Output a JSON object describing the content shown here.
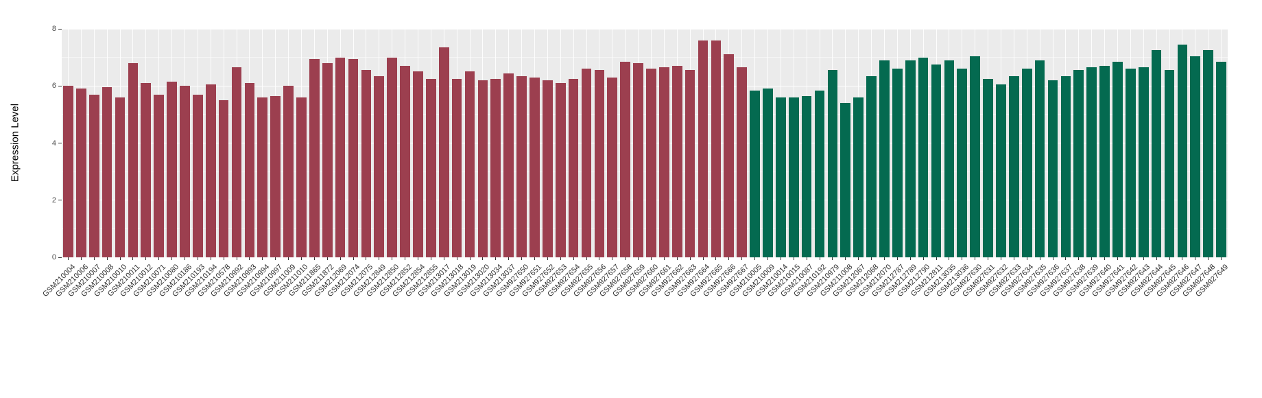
{
  "figure": {
    "background": "#ffffff",
    "panel_background": "#ebebeb",
    "grid_color": "#ffffff"
  },
  "chart_data": {
    "type": "bar",
    "title": "",
    "xlabel": "",
    "ylabel": "Expression Level",
    "ylim": [
      0,
      8
    ],
    "yticks": [
      0,
      2,
      4,
      6,
      8
    ],
    "grid": "white major and minor horizontal gridlines plus vertical category gridlines on gray panel",
    "legend_position": "none",
    "bar_groups": [
      {
        "name": "left-group",
        "color": "#9c3f4f",
        "labels": [
          "GSM210004",
          "GSM210006",
          "GSM210007",
          "GSM210008",
          "GSM210010",
          "GSM210011",
          "GSM210012",
          "GSM210071",
          "GSM210080",
          "GSM210186",
          "GSM210193",
          "GSM210194",
          "GSM210578",
          "GSM210992",
          "GSM210993",
          "GSM210994",
          "GSM210997",
          "GSM211009",
          "GSM211010",
          "GSM211865",
          "GSM211872",
          "GSM212069",
          "GSM212074",
          "GSM212075",
          "GSM212849",
          "GSM212850",
          "GSM212852",
          "GSM212854",
          "GSM212855",
          "GSM213017",
          "GSM213018",
          "GSM213019",
          "GSM213020",
          "GSM213034",
          "GSM213037",
          "GSM927650",
          "GSM927651",
          "GSM927652",
          "GSM927653",
          "GSM927654",
          "GSM927655",
          "GSM927656",
          "GSM927657",
          "GSM927658",
          "GSM927659",
          "GSM927660",
          "GSM927661",
          "GSM927662",
          "GSM927663",
          "GSM927664",
          "GSM927665",
          "GSM927666",
          "GSM927667"
        ],
        "values": [
          6.0,
          5.9,
          5.7,
          5.95,
          5.6,
          6.8,
          6.1,
          5.7,
          6.15,
          6.0,
          5.7,
          6.05,
          5.5,
          6.65,
          6.1,
          5.6,
          5.65,
          6.0,
          5.6,
          6.95,
          6.8,
          7.0,
          6.95,
          6.55,
          6.35,
          7.0,
          6.7,
          6.5,
          6.25,
          7.35,
          6.25,
          6.5,
          6.2,
          6.25,
          6.45,
          6.35,
          6.3,
          6.2,
          6.1,
          6.25,
          6.6,
          6.55,
          6.3,
          6.85,
          6.8,
          6.6,
          6.65,
          6.7,
          6.55,
          7.6,
          7.6,
          7.1,
          6.65
        ]
      },
      {
        "name": "right-group",
        "color": "#046a50",
        "labels": [
          "GSM210005",
          "GSM210009",
          "GSM210014",
          "GSM210015",
          "GSM210087",
          "GSM210192",
          "GSM210979",
          "GSM211008",
          "GSM212067",
          "GSM212068",
          "GSM212070",
          "GSM212787",
          "GSM212789",
          "GSM212790",
          "GSM212811",
          "GSM213035",
          "GSM213036",
          "GSM927630",
          "GSM927631",
          "GSM927632",
          "GSM927633",
          "GSM927634",
          "GSM927635",
          "GSM927636",
          "GSM927637",
          "GSM927638",
          "GSM927639",
          "GSM927640",
          "GSM927641",
          "GSM927642",
          "GSM927643",
          "GSM927644",
          "GSM927645",
          "GSM927646",
          "GSM927647",
          "GSM927648",
          "GSM927649"
        ],
        "values": [
          5.85,
          5.9,
          5.6,
          5.6,
          5.65,
          5.85,
          6.55,
          5.4,
          5.6,
          6.35,
          6.9,
          6.6,
          6.9,
          7.0,
          6.75,
          6.9,
          6.6,
          7.05,
          6.25,
          6.05,
          6.35,
          6.6,
          6.9,
          6.2,
          6.35,
          6.55,
          6.65,
          6.7,
          6.85,
          6.6,
          6.65,
          7.25,
          6.55,
          7.45,
          7.05,
          7.25,
          6.85
        ]
      }
    ]
  }
}
